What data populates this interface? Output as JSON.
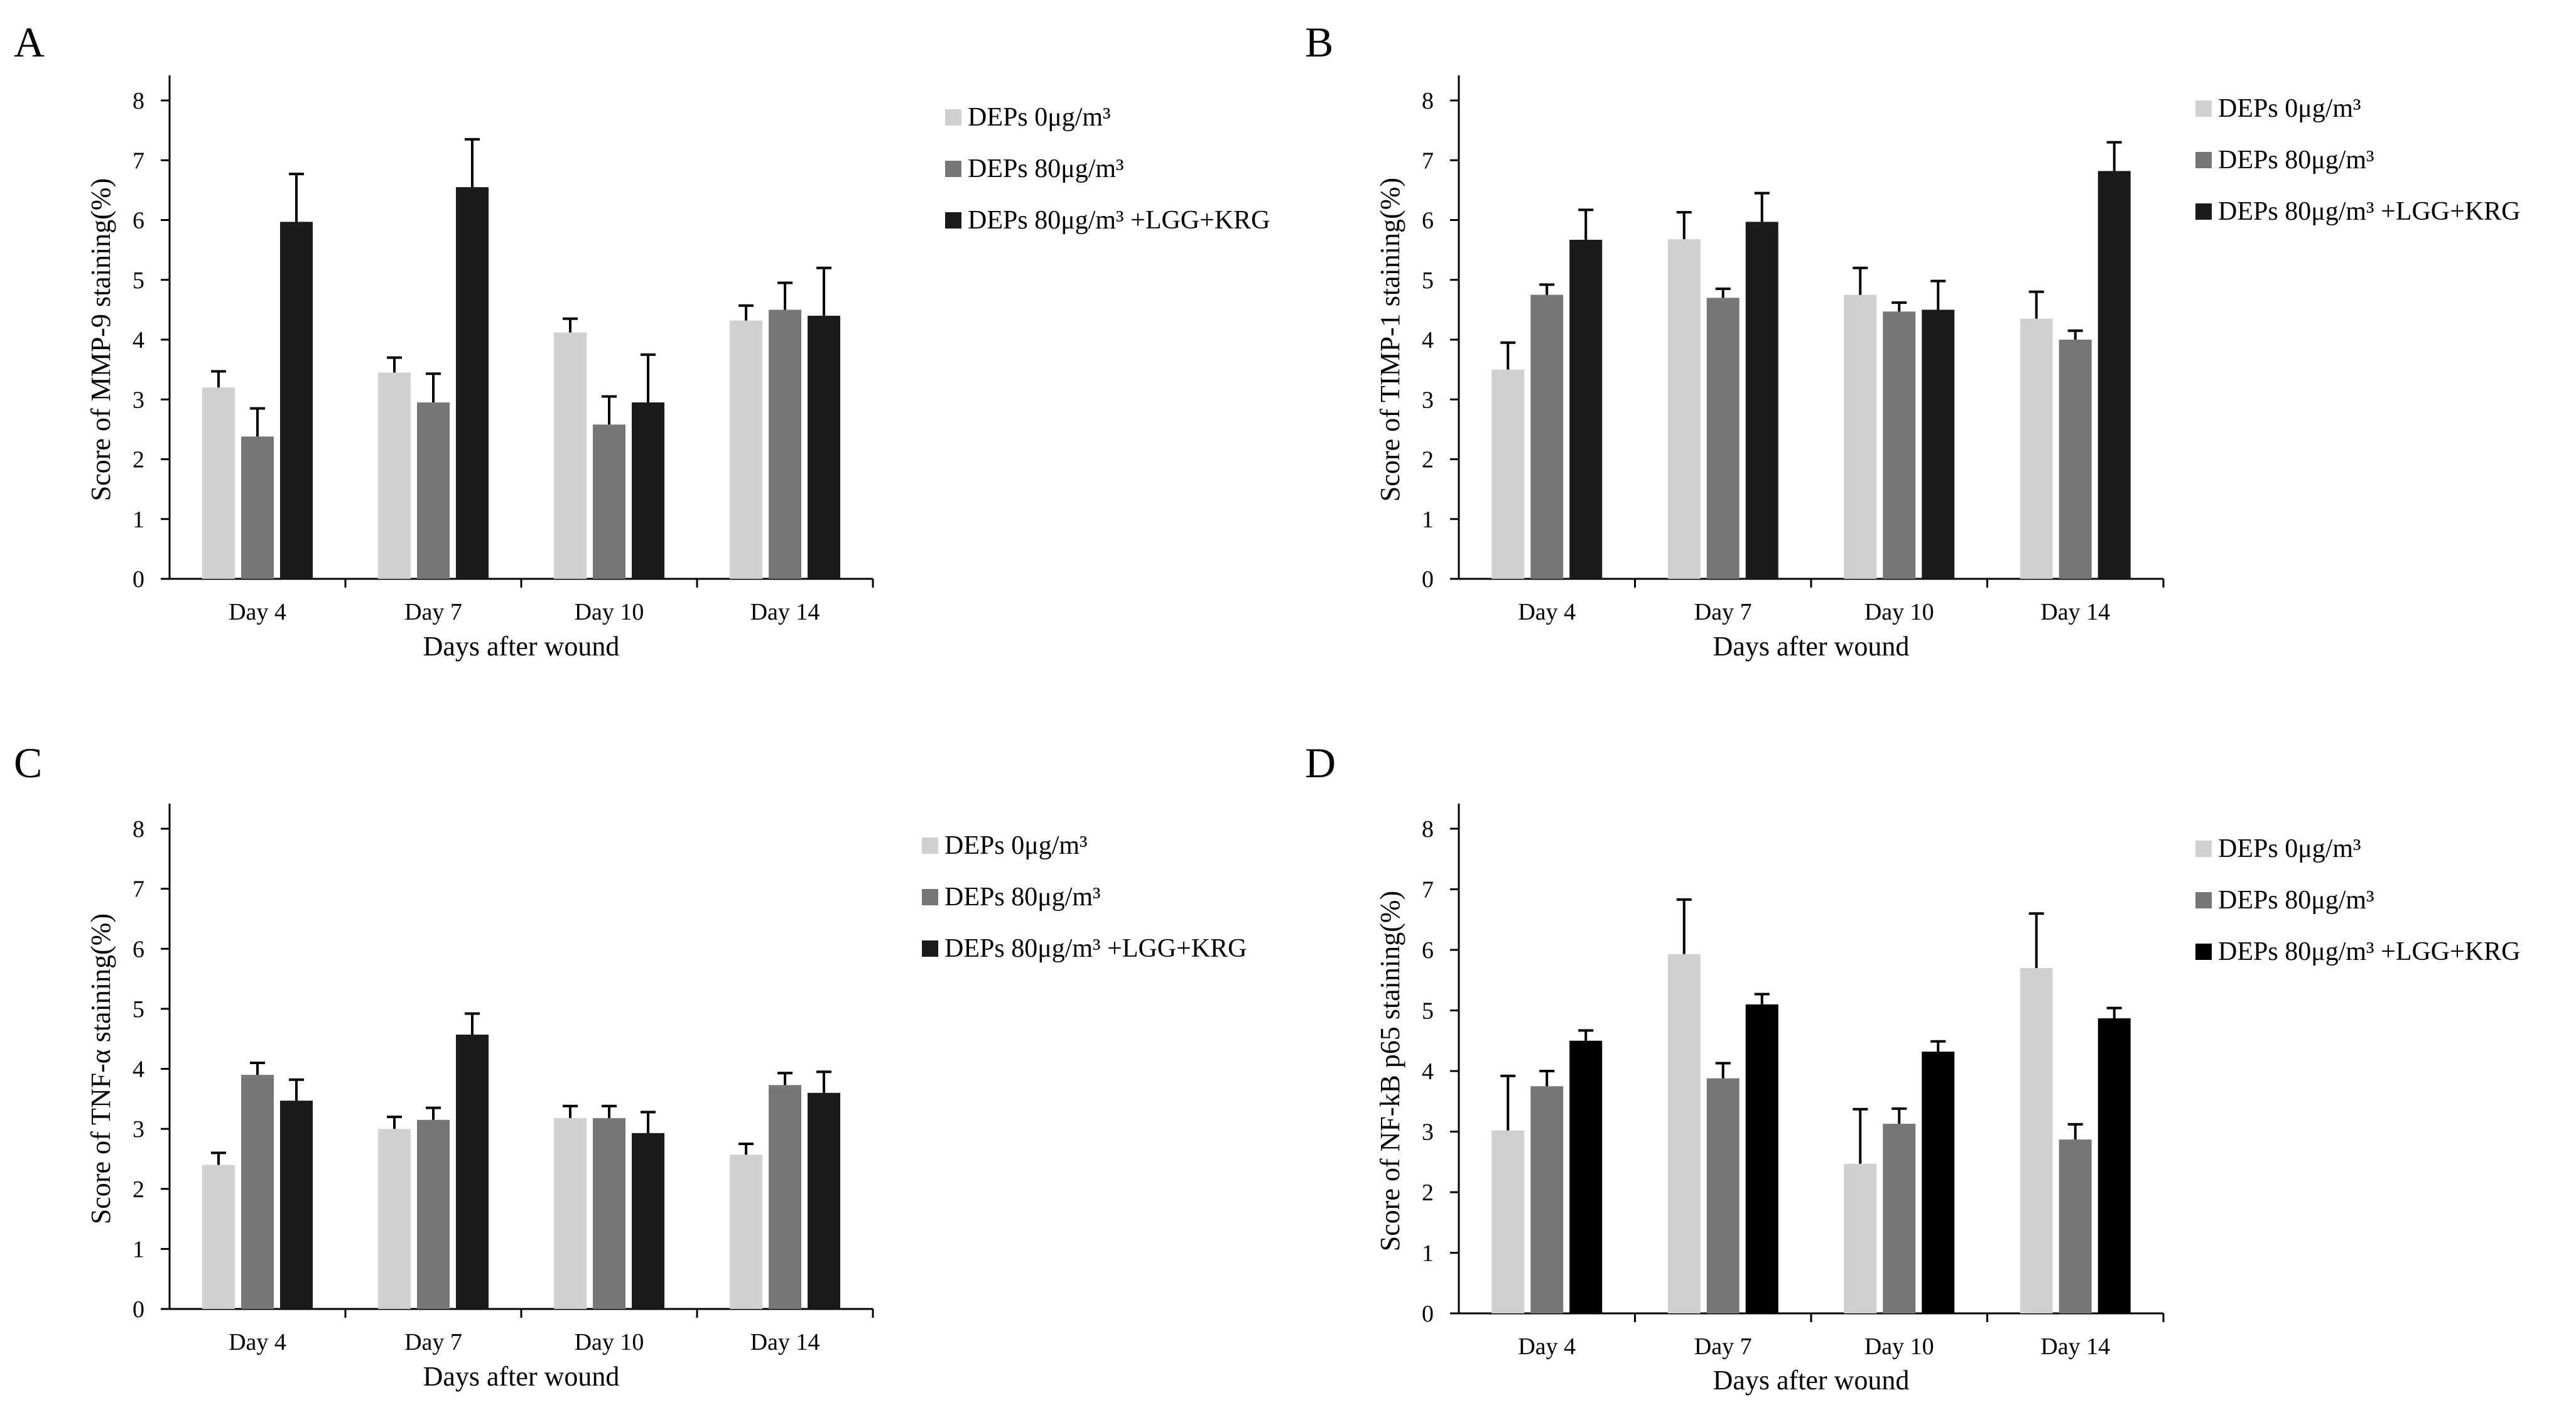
{
  "chart_data": [
    {
      "panel": "A",
      "type": "bar",
      "categories": [
        "Day 4",
        "Day 7",
        "Day 10",
        "Day 14"
      ],
      "series": [
        {
          "name": "DEPs 0μg/m³",
          "color": "#d0d0d0",
          "values": [
            3.2,
            3.45,
            4.12,
            4.32
          ],
          "errors": [
            0.27,
            0.25,
            0.23,
            0.25
          ]
        },
        {
          "name": "DEPs 80μg/m³",
          "color": "#777777",
          "values": [
            2.38,
            2.95,
            2.58,
            4.5
          ],
          "errors": [
            0.47,
            0.48,
            0.47,
            0.45
          ]
        },
        {
          "name": "DEPs 80μg/m³ +LGG+KRG",
          "color": "#1a1a1a",
          "values": [
            5.97,
            6.55,
            2.95,
            4.4
          ],
          "errors": [
            0.8,
            0.8,
            0.8,
            0.8
          ]
        }
      ],
      "xlabel": "Days after wound",
      "ylabel": "Score of MMP-9 staining(%)",
      "ylim": [
        0,
        8
      ],
      "yticks": [
        "0",
        "1",
        "2",
        "3",
        "4",
        "5",
        "6",
        "7",
        "8"
      ]
    },
    {
      "panel": "B",
      "type": "bar",
      "categories": [
        "Day 4",
        "Day 7",
        "Day 10",
        "Day 14"
      ],
      "series": [
        {
          "name": "DEPs 0μg/m³",
          "color": "#d0d0d0",
          "values": [
            3.5,
            5.68,
            4.75,
            4.35
          ],
          "errors": [
            0.45,
            0.45,
            0.45,
            0.45
          ]
        },
        {
          "name": "DEPs 80μg/m³",
          "color": "#777777",
          "values": [
            4.75,
            4.7,
            4.47,
            4.0
          ],
          "errors": [
            0.17,
            0.15,
            0.15,
            0.15
          ]
        },
        {
          "name": "DEPs 80μg/m³ +LGG+KRG",
          "color": "#1a1a1a",
          "values": [
            5.67,
            5.97,
            4.5,
            6.82
          ],
          "errors": [
            0.5,
            0.48,
            0.48,
            0.48
          ]
        }
      ],
      "xlabel": "Days after wound",
      "ylabel": "Score of TIMP-1 staining(%)",
      "ylim": [
        0,
        8
      ],
      "yticks": [
        "0",
        "1",
        "2",
        "3",
        "4",
        "5",
        "6",
        "7",
        "8"
      ]
    },
    {
      "panel": "C",
      "type": "bar",
      "categories": [
        "Day 4",
        "Day 7",
        "Day 10",
        "Day 14"
      ],
      "series": [
        {
          "name": "DEPs 0μg/m³",
          "color": "#d0d0d0",
          "values": [
            2.4,
            3.0,
            3.18,
            2.57
          ],
          "errors": [
            0.2,
            0.2,
            0.2,
            0.18
          ]
        },
        {
          "name": "DEPs 80μg/m³",
          "color": "#777777",
          "values": [
            3.9,
            3.15,
            3.18,
            3.73
          ],
          "errors": [
            0.2,
            0.2,
            0.2,
            0.2
          ]
        },
        {
          "name": "DEPs 80μg/m³ +LGG+KRG",
          "color": "#1a1a1a",
          "values": [
            3.47,
            4.57,
            2.93,
            3.6
          ],
          "errors": [
            0.35,
            0.35,
            0.35,
            0.35
          ]
        }
      ],
      "xlabel": "Days after wound",
      "ylabel": "Score of TNF-α staining(%)",
      "ylim": [
        0,
        8
      ],
      "yticks": [
        "0",
        "1",
        "2",
        "3",
        "4",
        "5",
        "6",
        "7",
        "8"
      ]
    },
    {
      "panel": "D",
      "type": "bar",
      "categories": [
        "Day 4",
        "Day 7",
        "Day 10",
        "Day 14"
      ],
      "series": [
        {
          "name": "DEPs 0μg/m³",
          "color": "#d0d0d0",
          "values": [
            3.02,
            5.93,
            2.47,
            5.7
          ],
          "errors": [
            0.9,
            0.9,
            0.9,
            0.9
          ]
        },
        {
          "name": "DEPs 80μg/m³",
          "color": "#777777",
          "values": [
            3.75,
            3.88,
            3.13,
            2.87
          ],
          "errors": [
            0.25,
            0.25,
            0.25,
            0.25
          ]
        },
        {
          "name": "DEPs 80μg/m³ +LGG+KRG",
          "color": "#000000",
          "values": [
            4.5,
            5.1,
            4.32,
            4.87
          ],
          "errors": [
            0.17,
            0.17,
            0.17,
            0.17
          ]
        }
      ],
      "xlabel": "Days after wound",
      "ylabel": "Score of NF-kB p65 staining(%)",
      "ylim": [
        0,
        8
      ],
      "yticks": [
        "0",
        "1",
        "2",
        "3",
        "4",
        "5",
        "6",
        "7",
        "8"
      ]
    }
  ]
}
